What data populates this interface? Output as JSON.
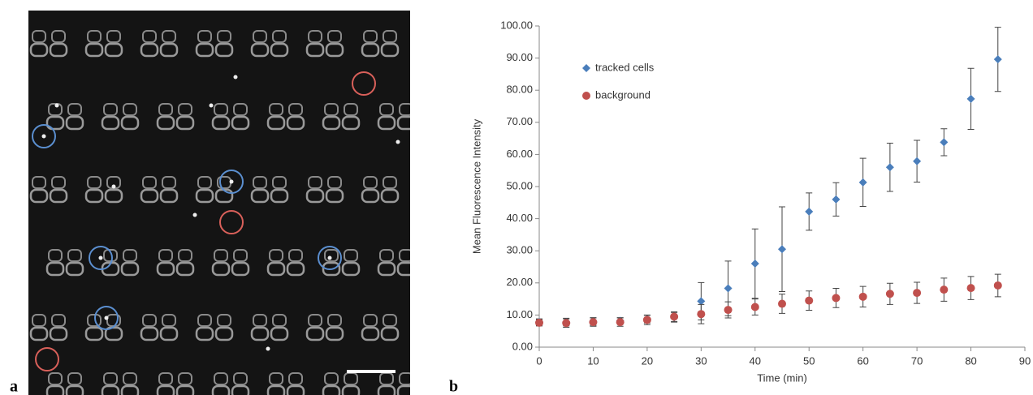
{
  "panel_labels": [
    "a",
    "b"
  ],
  "chart_data": {
    "type": "scatter",
    "x_label": "Time (min)",
    "y_label": "Mean Fluorescence Intensity",
    "xlim": [
      0,
      90
    ],
    "xticks": [
      0,
      10,
      20,
      30,
      40,
      50,
      60,
      70,
      80,
      90
    ],
    "ylim": [
      0,
      100
    ],
    "yticks": [
      {
        "value": 0,
        "label": "0.00"
      },
      {
        "value": 10,
        "label": "10.00"
      },
      {
        "value": 20,
        "label": "20.00"
      },
      {
        "value": 30,
        "label": "30.00"
      },
      {
        "value": 40,
        "label": "40.00"
      },
      {
        "value": 50,
        "label": "50.00"
      },
      {
        "value": 60,
        "label": "60.00"
      },
      {
        "value": 70,
        "label": "70.00"
      },
      {
        "value": 80,
        "label": "80.00"
      },
      {
        "value": 90,
        "label": "90.00"
      },
      {
        "value": 100,
        "label": "100.00"
      }
    ],
    "grid": false,
    "legend": "upper-left",
    "x": [
      0,
      5,
      10,
      15,
      20,
      25,
      30,
      35,
      40,
      45,
      50,
      55,
      60,
      65,
      70,
      75,
      80,
      85
    ],
    "series": [
      {
        "name": "tracked cells",
        "color": "#4a7ebb",
        "marker": "diamond",
        "values": [
          7.8,
          7.8,
          8.0,
          8.2,
          8.7,
          9.3,
          14.3,
          18.3,
          26.0,
          30.5,
          42.2,
          46.0,
          51.3,
          56.0,
          57.9,
          63.8,
          77.3,
          89.6
        ],
        "errors": [
          1.0,
          1.2,
          1.2,
          1.0,
          1.2,
          1.5,
          5.8,
          8.5,
          10.8,
          13.2,
          5.8,
          5.2,
          7.5,
          7.5,
          6.5,
          4.2,
          9.5,
          10.0
        ]
      },
      {
        "name": "background",
        "color": "#c0504d",
        "marker": "circle",
        "values": [
          7.6,
          7.5,
          7.8,
          7.8,
          8.5,
          9.5,
          10.3,
          11.6,
          12.5,
          13.5,
          14.5,
          15.3,
          15.7,
          16.6,
          16.9,
          17.9,
          18.4,
          19.2
        ],
        "errors": [
          1.0,
          1.3,
          1.3,
          1.3,
          1.5,
          1.5,
          3.0,
          2.5,
          2.5,
          3.0,
          3.0,
          3.0,
          3.2,
          3.3,
          3.3,
          3.6,
          3.6,
          3.5
        ]
      }
    ]
  }
}
